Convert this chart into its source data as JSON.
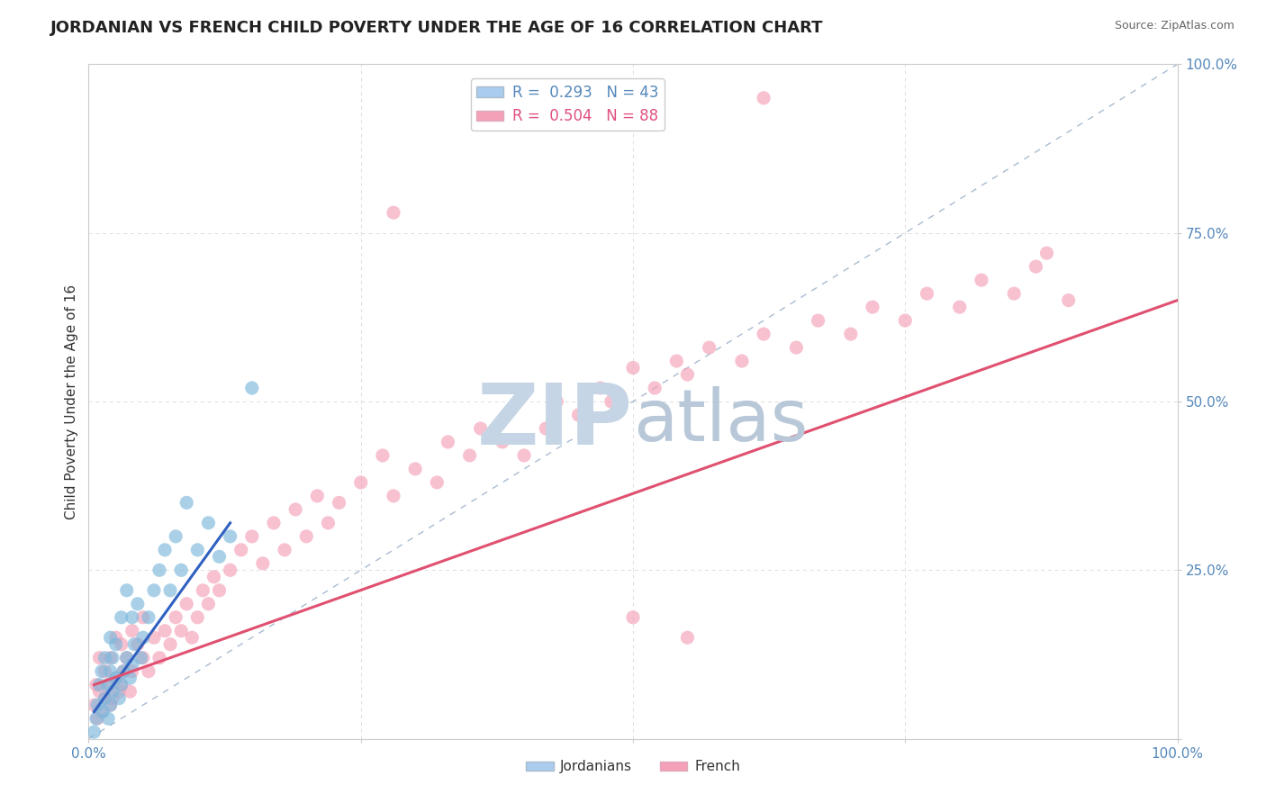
{
  "title": "JORDANIAN VS FRENCH CHILD POVERTY UNDER THE AGE OF 16 CORRELATION CHART",
  "source": "Source: ZipAtlas.com",
  "ylabel": "Child Poverty Under the Age of 16",
  "xlim": [
    0,
    1
  ],
  "ylim": [
    0,
    1
  ],
  "watermark_zip": "ZIP",
  "watermark_atlas": "atlas",
  "watermark_color_zip": "#C5D5E5",
  "watermark_color_atlas": "#B8C8D8",
  "watermark_fontsize": 68,
  "background_color": "#FFFFFF",
  "grid_color": "#DDDDDD",
  "title_fontsize": 13,
  "axis_label_fontsize": 11,
  "tick_fontsize": 11,
  "jor_color": "#7DB8DC",
  "french_color": "#F4A0B8",
  "jor_trend_color": "#3060C0",
  "french_trend_color": "#E05070",
  "ref_line_color": "#AABBD0",
  "jor_x": [
    0.005,
    0.007,
    0.008,
    0.01,
    0.012,
    0.013,
    0.015,
    0.015,
    0.018,
    0.018,
    0.02,
    0.02,
    0.02,
    0.022,
    0.022,
    0.025,
    0.025,
    0.028,
    0.03,
    0.03,
    0.032,
    0.035,
    0.035,
    0.038,
    0.04,
    0.04,
    0.042,
    0.045,
    0.048,
    0.05,
    0.055,
    0.06,
    0.065,
    0.07,
    0.075,
    0.08,
    0.085,
    0.09,
    0.1,
    0.11,
    0.12,
    0.13,
    0.15
  ],
  "jor_y": [
    0.01,
    0.03,
    0.05,
    0.08,
    0.1,
    0.04,
    0.06,
    0.12,
    0.03,
    0.08,
    0.05,
    0.1,
    0.15,
    0.07,
    0.12,
    0.09,
    0.14,
    0.06,
    0.08,
    0.18,
    0.1,
    0.12,
    0.22,
    0.09,
    0.11,
    0.18,
    0.14,
    0.2,
    0.12,
    0.15,
    0.18,
    0.22,
    0.25,
    0.28,
    0.22,
    0.3,
    0.25,
    0.35,
    0.28,
    0.32,
    0.27,
    0.3,
    0.52
  ],
  "french_x": [
    0.005,
    0.007,
    0.008,
    0.01,
    0.01,
    0.012,
    0.015,
    0.015,
    0.018,
    0.02,
    0.02,
    0.022,
    0.025,
    0.025,
    0.028,
    0.03,
    0.03,
    0.032,
    0.035,
    0.038,
    0.04,
    0.04,
    0.045,
    0.05,
    0.05,
    0.055,
    0.06,
    0.065,
    0.07,
    0.075,
    0.08,
    0.085,
    0.09,
    0.095,
    0.1,
    0.105,
    0.11,
    0.115,
    0.12,
    0.13,
    0.14,
    0.15,
    0.16,
    0.17,
    0.18,
    0.19,
    0.2,
    0.21,
    0.22,
    0.23,
    0.25,
    0.27,
    0.28,
    0.3,
    0.32,
    0.33,
    0.35,
    0.36,
    0.38,
    0.4,
    0.42,
    0.43,
    0.45,
    0.47,
    0.48,
    0.5,
    0.52,
    0.54,
    0.55,
    0.57,
    0.6,
    0.62,
    0.65,
    0.67,
    0.7,
    0.72,
    0.75,
    0.77,
    0.8,
    0.82,
    0.85,
    0.87,
    0.88,
    0.9,
    0.62,
    0.28,
    0.5,
    0.55
  ],
  "french_y": [
    0.05,
    0.08,
    0.03,
    0.07,
    0.12,
    0.04,
    0.06,
    0.1,
    0.08,
    0.05,
    0.12,
    0.06,
    0.09,
    0.15,
    0.07,
    0.08,
    0.14,
    0.1,
    0.12,
    0.07,
    0.1,
    0.16,
    0.14,
    0.12,
    0.18,
    0.1,
    0.15,
    0.12,
    0.16,
    0.14,
    0.18,
    0.16,
    0.2,
    0.15,
    0.18,
    0.22,
    0.2,
    0.24,
    0.22,
    0.25,
    0.28,
    0.3,
    0.26,
    0.32,
    0.28,
    0.34,
    0.3,
    0.36,
    0.32,
    0.35,
    0.38,
    0.42,
    0.36,
    0.4,
    0.38,
    0.44,
    0.42,
    0.46,
    0.44,
    0.42,
    0.46,
    0.5,
    0.48,
    0.52,
    0.5,
    0.55,
    0.52,
    0.56,
    0.54,
    0.58,
    0.56,
    0.6,
    0.58,
    0.62,
    0.6,
    0.64,
    0.62,
    0.66,
    0.64,
    0.68,
    0.66,
    0.7,
    0.72,
    0.65,
    0.95,
    0.78,
    0.18,
    0.15
  ],
  "jor_trend_x": [
    0.005,
    0.13
  ],
  "jor_trend_y": [
    0.04,
    0.32
  ],
  "french_trend_x": [
    0.005,
    1.0
  ],
  "french_trend_y": [
    0.08,
    0.65
  ]
}
